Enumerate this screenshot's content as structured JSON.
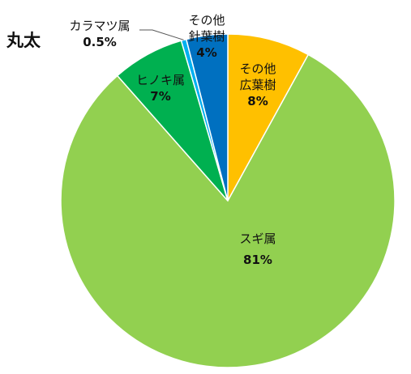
{
  "chart_data": {
    "type": "pie",
    "title": "丸太",
    "slices": [
      {
        "name": "その他広葉樹",
        "label_lines": [
          "その他",
          "広葉樹"
        ],
        "percent_label": "8%",
        "value": 8,
        "color": "#FFC000"
      },
      {
        "name": "スギ属",
        "label_lines": [
          "スギ属"
        ],
        "percent_label": "81%",
        "value": 80.5,
        "color": "#92D050"
      },
      {
        "name": "ヒノキ属",
        "label_lines": [
          "ヒノキ属"
        ],
        "percent_label": "7%",
        "value": 7,
        "color": "#00B050"
      },
      {
        "name": "カラマツ属",
        "label_lines": [
          "カラマツ属"
        ],
        "percent_label": "0.5%",
        "value": 0.5,
        "color": "#00B0F0"
      },
      {
        "name": "その他針葉樹",
        "label_lines": [
          "その他",
          "針葉樹"
        ],
        "percent_label": "4%",
        "value": 4,
        "color": "#0070C0"
      }
    ]
  }
}
